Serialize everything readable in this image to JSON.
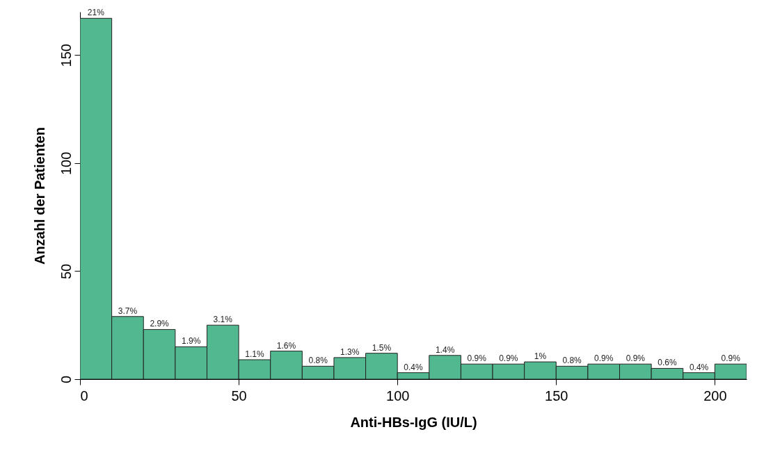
{
  "chart_data": {
    "type": "histogram",
    "xlabel": "Anti-HBs-IgG (IU/L)",
    "ylabel": "Anzahl der Patienten",
    "bins": [
      0,
      10,
      20,
      30,
      40,
      50,
      60,
      70,
      80,
      90,
      100,
      110,
      120,
      130,
      140,
      150,
      160,
      170,
      180,
      190,
      200,
      210
    ],
    "values": [
      167,
      29,
      23,
      15,
      25,
      9,
      13,
      6,
      10,
      12,
      3,
      11,
      7,
      7,
      8,
      6,
      7,
      7,
      5,
      3,
      7
    ],
    "annotations": [
      {
        "text": "21%",
        "x": 5,
        "y": 167
      },
      {
        "text": "3.7%",
        "x": 15,
        "y": 29
      },
      {
        "text": "2.9%",
        "x": 25,
        "y": 23
      },
      {
        "text": "1.9%",
        "x": 35,
        "y": 15
      },
      {
        "text": "3.1%",
        "x": 45,
        "y": 25
      },
      {
        "text": "1.1%",
        "x": 55,
        "y": 9
      },
      {
        "text": "1.6%",
        "x": 65,
        "y": 13
      },
      {
        "text": "0.8%",
        "x": 75,
        "y": 6
      },
      {
        "text": "1.3%",
        "x": 85,
        "y": 10
      },
      {
        "text": "1.5%",
        "x": 95,
        "y": 12
      },
      {
        "text": "0.4%",
        "x": 105,
        "y": 3
      },
      {
        "text": "1.4%",
        "x": 115,
        "y": 11
      },
      {
        "text": "0.9%",
        "x": 125,
        "y": 7
      },
      {
        "text": "0.9%",
        "x": 135,
        "y": 7
      },
      {
        "text": "1%",
        "x": 145,
        "y": 8
      },
      {
        "text": "0.8%",
        "x": 155,
        "y": 6
      },
      {
        "text": "0.9%",
        "x": 165,
        "y": 7
      },
      {
        "text": "0.9%",
        "x": 175,
        "y": 7
      },
      {
        "text": "0.6%",
        "x": 185,
        "y": 5
      },
      {
        "text": "0.4%",
        "x": 195,
        "y": 3
      },
      {
        "text": "0.9%",
        "x": 205,
        "y": 7
      }
    ],
    "color": "#52b88f",
    "xlim": [
      0,
      210
    ],
    "xticks": [
      0,
      50,
      100,
      150,
      200
    ],
    "ylim": [
      0,
      170
    ],
    "yticks": [
      0,
      50,
      100,
      150
    ],
    "grid": false
  }
}
